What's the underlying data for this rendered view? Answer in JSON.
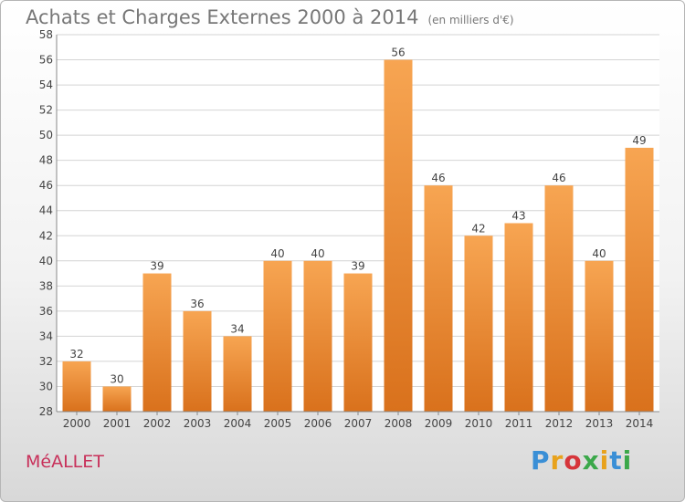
{
  "header": {
    "title": "Achats et Charges Externes 2000 à 2014",
    "subtitle": "(en milliers d'€)"
  },
  "footer": {
    "commune": "MéALLET",
    "logo": "Proxiti",
    "logo_colors": [
      "#3a8fd6",
      "#e8a21c",
      "#d6353a",
      "#3ba84a",
      "#e8a21c",
      "#3a8fd6",
      "#3ba84a"
    ]
  },
  "colors": {
    "bar_top": "#f7a552",
    "bar_bottom": "#d9711c",
    "grid": "#d4d4d4",
    "axis": "#888888"
  },
  "chart_data": {
    "type": "bar",
    "categories": [
      "2000",
      "2001",
      "2002",
      "2003",
      "2004",
      "2005",
      "2006",
      "2007",
      "2008",
      "2009",
      "2010",
      "2011",
      "2012",
      "2013",
      "2014"
    ],
    "values": [
      32,
      30,
      39,
      36,
      34,
      40,
      40,
      39,
      56,
      46,
      42,
      43,
      46,
      40,
      49
    ],
    "ylim": [
      28,
      58
    ],
    "yticks": [
      28,
      30,
      32,
      34,
      36,
      38,
      40,
      42,
      44,
      46,
      48,
      50,
      52,
      54,
      56,
      58
    ],
    "grid": true,
    "data_labels": true
  }
}
